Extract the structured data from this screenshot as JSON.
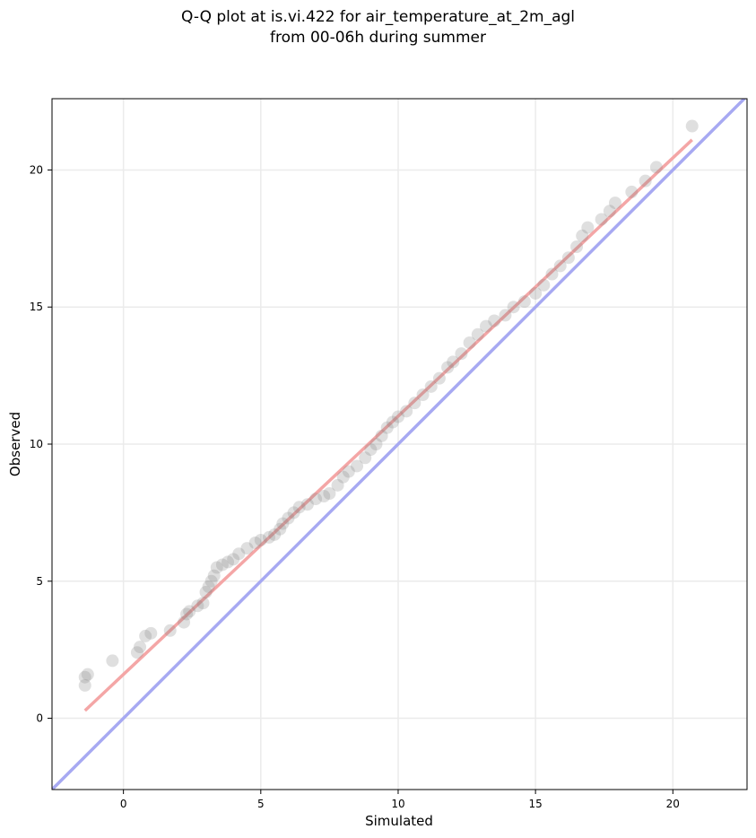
{
  "chart_data": {
    "type": "scatter",
    "title": [
      "Q-Q plot at is.vi.422 for air_temperature_at_2m_agl",
      "from 00-06h during summer"
    ],
    "xlabel": "Simulated",
    "ylabel": "Observed",
    "xlim": [
      -2.6,
      22.7
    ],
    "ylim": [
      -2.6,
      22.6
    ],
    "xticks": [
      0,
      5,
      10,
      15,
      20
    ],
    "yticks": [
      0,
      5,
      10,
      15,
      20
    ],
    "grid": true,
    "marker_color": "#7f7f7f",
    "fit_line": {
      "x": [
        -1.4,
        20.7
      ],
      "y": [
        0.28,
        21.1
      ],
      "color": "#f4a6a6"
    },
    "identity_line": {
      "x": [
        -2.6,
        22.7
      ],
      "y": [
        -2.6,
        22.7
      ],
      "color": "#a7a9f2"
    },
    "points": [
      [
        -1.4,
        1.2
      ],
      [
        -1.4,
        1.5
      ],
      [
        -1.3,
        1.6
      ],
      [
        -0.4,
        2.1
      ],
      [
        0.5,
        2.4
      ],
      [
        0.6,
        2.6
      ],
      [
        0.8,
        3.0
      ],
      [
        1.0,
        3.1
      ],
      [
        1.7,
        3.2
      ],
      [
        2.2,
        3.5
      ],
      [
        2.3,
        3.8
      ],
      [
        2.4,
        3.9
      ],
      [
        2.7,
        4.1
      ],
      [
        2.9,
        4.2
      ],
      [
        3.0,
        4.6
      ],
      [
        3.1,
        4.8
      ],
      [
        3.2,
        5.0
      ],
      [
        3.3,
        5.2
      ],
      [
        3.4,
        5.5
      ],
      [
        3.6,
        5.6
      ],
      [
        3.8,
        5.7
      ],
      [
        4.0,
        5.8
      ],
      [
        4.2,
        6.0
      ],
      [
        4.5,
        6.2
      ],
      [
        4.8,
        6.4
      ],
      [
        5.0,
        6.5
      ],
      [
        5.3,
        6.6
      ],
      [
        5.5,
        6.7
      ],
      [
        5.7,
        6.9
      ],
      [
        5.8,
        7.1
      ],
      [
        6.0,
        7.3
      ],
      [
        6.2,
        7.5
      ],
      [
        6.4,
        7.7
      ],
      [
        6.7,
        7.8
      ],
      [
        7.0,
        8.0
      ],
      [
        7.3,
        8.1
      ],
      [
        7.5,
        8.2
      ],
      [
        7.8,
        8.5
      ],
      [
        8.0,
        8.8
      ],
      [
        8.2,
        9.0
      ],
      [
        8.5,
        9.2
      ],
      [
        8.8,
        9.5
      ],
      [
        9.0,
        9.8
      ],
      [
        9.2,
        10.0
      ],
      [
        9.4,
        10.3
      ],
      [
        9.6,
        10.6
      ],
      [
        9.8,
        10.8
      ],
      [
        10.0,
        11.0
      ],
      [
        10.3,
        11.2
      ],
      [
        10.6,
        11.5
      ],
      [
        10.9,
        11.8
      ],
      [
        11.2,
        12.1
      ],
      [
        11.5,
        12.4
      ],
      [
        11.8,
        12.8
      ],
      [
        12.0,
        13.0
      ],
      [
        12.3,
        13.3
      ],
      [
        12.6,
        13.7
      ],
      [
        12.9,
        14.0
      ],
      [
        13.2,
        14.3
      ],
      [
        13.5,
        14.5
      ],
      [
        13.9,
        14.7
      ],
      [
        14.2,
        15.0
      ],
      [
        14.6,
        15.2
      ],
      [
        15.0,
        15.5
      ],
      [
        15.3,
        15.8
      ],
      [
        15.6,
        16.2
      ],
      [
        15.9,
        16.5
      ],
      [
        16.2,
        16.8
      ],
      [
        16.5,
        17.2
      ],
      [
        16.7,
        17.6
      ],
      [
        16.9,
        17.9
      ],
      [
        17.4,
        18.2
      ],
      [
        17.7,
        18.5
      ],
      [
        17.9,
        18.8
      ],
      [
        18.5,
        19.2
      ],
      [
        19.0,
        19.6
      ],
      [
        19.4,
        20.1
      ],
      [
        20.7,
        21.6
      ]
    ]
  }
}
